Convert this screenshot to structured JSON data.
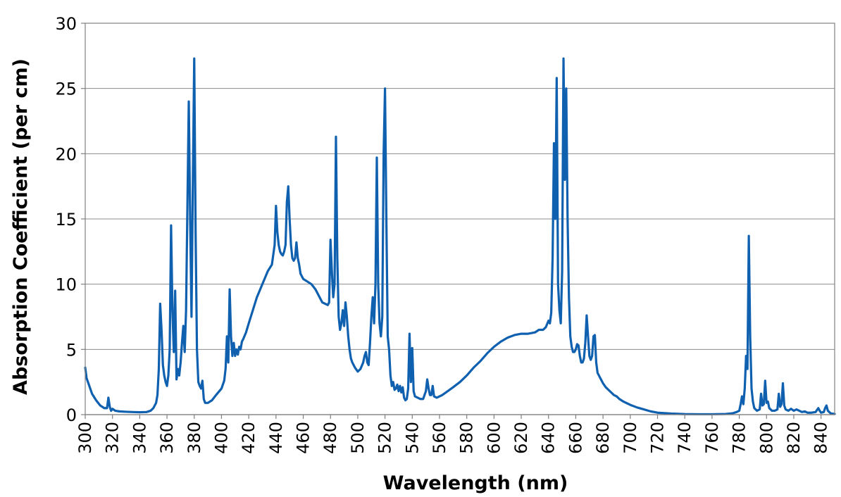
{
  "chart_data": {
    "type": "line",
    "title": "",
    "xlabel": "Wavelength (nm)",
    "ylabel": "Absorption Coefficient (per cm)",
    "xlim": [
      300,
      850
    ],
    "ylim": [
      0,
      30
    ],
    "x_ticks": [
      300,
      320,
      340,
      360,
      380,
      400,
      420,
      440,
      460,
      480,
      500,
      520,
      540,
      560,
      580,
      600,
      620,
      640,
      660,
      680,
      700,
      720,
      740,
      760,
      780,
      800,
      820,
      840
    ],
    "y_ticks": [
      0,
      5,
      10,
      15,
      20,
      25,
      30
    ],
    "grid": "horizontal",
    "legend": "none",
    "series": [
      {
        "color": "#1060b0",
        "points": [
          [
            300,
            3.6
          ],
          [
            301,
            2.8
          ],
          [
            303,
            2.2
          ],
          [
            305,
            1.6
          ],
          [
            308,
            1.1
          ],
          [
            311,
            0.7
          ],
          [
            314,
            0.5
          ],
          [
            316,
            0.5
          ],
          [
            317,
            1.3
          ],
          [
            318,
            0.6
          ],
          [
            319,
            0.3
          ],
          [
            320,
            0.45
          ],
          [
            322,
            0.3
          ],
          [
            325,
            0.25
          ],
          [
            330,
            0.22
          ],
          [
            335,
            0.2
          ],
          [
            340,
            0.18
          ],
          [
            345,
            0.2
          ],
          [
            348,
            0.3
          ],
          [
            350,
            0.5
          ],
          [
            352,
            0.9
          ],
          [
            353,
            1.5
          ],
          [
            354,
            3.5
          ],
          [
            355,
            8.5
          ],
          [
            356,
            6.5
          ],
          [
            357,
            3.8
          ],
          [
            358,
            3.0
          ],
          [
            359,
            2.5
          ],
          [
            360,
            2.2
          ],
          [
            361,
            3.0
          ],
          [
            362,
            5.0
          ],
          [
            363,
            14.5
          ],
          [
            364,
            8.0
          ],
          [
            365,
            4.8
          ],
          [
            366,
            9.5
          ],
          [
            367,
            2.7
          ],
          [
            368,
            3.5
          ],
          [
            369,
            3.0
          ],
          [
            370,
            4.0
          ],
          [
            371,
            5.5
          ],
          [
            372,
            6.8
          ],
          [
            373,
            4.8
          ],
          [
            374,
            8.0
          ],
          [
            375,
            16.0
          ],
          [
            376,
            24.0
          ],
          [
            377,
            15.0
          ],
          [
            378,
            7.5
          ],
          [
            379,
            18.0
          ],
          [
            380,
            27.3
          ],
          [
            381,
            14.0
          ],
          [
            382,
            5.0
          ],
          [
            383,
            2.5
          ],
          [
            384,
            2.2
          ],
          [
            385,
            2.0
          ],
          [
            386,
            2.6
          ],
          [
            387,
            1.2
          ],
          [
            388,
            0.9
          ],
          [
            390,
            0.9
          ],
          [
            393,
            1.1
          ],
          [
            396,
            1.5
          ],
          [
            400,
            2.0
          ],
          [
            402,
            2.6
          ],
          [
            403,
            3.5
          ],
          [
            404,
            6.0
          ],
          [
            405,
            4.0
          ],
          [
            406,
            9.6
          ],
          [
            407,
            6.0
          ],
          [
            408,
            4.5
          ],
          [
            409,
            5.5
          ],
          [
            410,
            4.5
          ],
          [
            411,
            5.0
          ],
          [
            412,
            4.6
          ],
          [
            413,
            5.2
          ],
          [
            414,
            5.0
          ],
          [
            415,
            5.6
          ],
          [
            416,
            5.8
          ],
          [
            418,
            6.3
          ],
          [
            420,
            7.0
          ],
          [
            423,
            8.0
          ],
          [
            426,
            9.0
          ],
          [
            430,
            10.0
          ],
          [
            434,
            11.0
          ],
          [
            437,
            11.5
          ],
          [
            439,
            13.0
          ],
          [
            440,
            16.0
          ],
          [
            441,
            14.0
          ],
          [
            442,
            13.0
          ],
          [
            443,
            12.5
          ],
          [
            444,
            12.3
          ],
          [
            445,
            12.2
          ],
          [
            446,
            12.5
          ],
          [
            447,
            13.0
          ],
          [
            448,
            16.3
          ],
          [
            449,
            17.5
          ],
          [
            450,
            15.0
          ],
          [
            451,
            13.0
          ],
          [
            452,
            12.0
          ],
          [
            453,
            11.8
          ],
          [
            454,
            12.0
          ],
          [
            455,
            13.2
          ],
          [
            456,
            12.0
          ],
          [
            457,
            11.5
          ],
          [
            458,
            10.8
          ],
          [
            460,
            10.4
          ],
          [
            463,
            10.2
          ],
          [
            466,
            10.0
          ],
          [
            469,
            9.6
          ],
          [
            472,
            9.0
          ],
          [
            474,
            8.6
          ],
          [
            476,
            8.5
          ],
          [
            478,
            8.4
          ],
          [
            479,
            8.6
          ],
          [
            480,
            13.4
          ],
          [
            481,
            11.0
          ],
          [
            482,
            9.0
          ],
          [
            483,
            10.0
          ],
          [
            484,
            21.3
          ],
          [
            485,
            12.0
          ],
          [
            486,
            7.5
          ],
          [
            487,
            6.5
          ],
          [
            488,
            7.0
          ],
          [
            489,
            8.0
          ],
          [
            490,
            6.8
          ],
          [
            491,
            8.6
          ],
          [
            492,
            7.5
          ],
          [
            493,
            6.0
          ],
          [
            494,
            5.0
          ],
          [
            495,
            4.3
          ],
          [
            496,
            4.0
          ],
          [
            497,
            3.8
          ],
          [
            498,
            3.6
          ],
          [
            500,
            3.3
          ],
          [
            502,
            3.5
          ],
          [
            504,
            4.0
          ],
          [
            505,
            4.5
          ],
          [
            506,
            4.8
          ],
          [
            507,
            4.0
          ],
          [
            508,
            3.8
          ],
          [
            509,
            5.5
          ],
          [
            510,
            7.5
          ],
          [
            511,
            9.0
          ],
          [
            512,
            7.0
          ],
          [
            513,
            10.0
          ],
          [
            514,
            19.7
          ],
          [
            515,
            10.0
          ],
          [
            516,
            7.0
          ],
          [
            517,
            6.0
          ],
          [
            518,
            7.5
          ],
          [
            519,
            20.0
          ],
          [
            520,
            25.0
          ],
          [
            521,
            15.0
          ],
          [
            522,
            6.0
          ],
          [
            523,
            5.0
          ],
          [
            524,
            3.0
          ],
          [
            525,
            2.2
          ],
          [
            526,
            2.5
          ],
          [
            527,
            1.9
          ],
          [
            528,
            2.0
          ],
          [
            529,
            2.3
          ],
          [
            530,
            1.8
          ],
          [
            531,
            2.2
          ],
          [
            532,
            1.7
          ],
          [
            533,
            2.1
          ],
          [
            534,
            1.3
          ],
          [
            535,
            1.1
          ],
          [
            536,
            1.2
          ],
          [
            537,
            2.0
          ],
          [
            538,
            6.2
          ],
          [
            539,
            2.5
          ],
          [
            540,
            5.1
          ],
          [
            541,
            1.8
          ],
          [
            542,
            1.4
          ],
          [
            544,
            1.3
          ],
          [
            546,
            1.2
          ],
          [
            548,
            1.2
          ],
          [
            550,
            1.8
          ],
          [
            551,
            2.7
          ],
          [
            552,
            2.0
          ],
          [
            553,
            1.5
          ],
          [
            554,
            1.5
          ],
          [
            555,
            2.2
          ],
          [
            556,
            1.4
          ],
          [
            558,
            1.3
          ],
          [
            562,
            1.5
          ],
          [
            566,
            1.8
          ],
          [
            570,
            2.1
          ],
          [
            575,
            2.5
          ],
          [
            580,
            3.0
          ],
          [
            585,
            3.6
          ],
          [
            590,
            4.1
          ],
          [
            595,
            4.7
          ],
          [
            600,
            5.2
          ],
          [
            605,
            5.6
          ],
          [
            610,
            5.9
          ],
          [
            615,
            6.1
          ],
          [
            620,
            6.2
          ],
          [
            625,
            6.2
          ],
          [
            630,
            6.3
          ],
          [
            633,
            6.5
          ],
          [
            636,
            6.5
          ],
          [
            638,
            6.7
          ],
          [
            640,
            7.2
          ],
          [
            641,
            7.0
          ],
          [
            642,
            7.8
          ],
          [
            643,
            12.0
          ],
          [
            644,
            20.8
          ],
          [
            645,
            15.0
          ],
          [
            646,
            25.8
          ],
          [
            647,
            10.0
          ],
          [
            648,
            8.0
          ],
          [
            649,
            7.0
          ],
          [
            650,
            11.0
          ],
          [
            651,
            27.3
          ],
          [
            652,
            18.0
          ],
          [
            653,
            25.0
          ],
          [
            654,
            15.0
          ],
          [
            655,
            9.0
          ],
          [
            656,
            6.0
          ],
          [
            657,
            5.2
          ],
          [
            658,
            4.8
          ],
          [
            659,
            4.8
          ],
          [
            660,
            5.0
          ],
          [
            661,
            5.4
          ],
          [
            662,
            5.3
          ],
          [
            663,
            4.5
          ],
          [
            664,
            4.0
          ],
          [
            665,
            4.0
          ],
          [
            666,
            4.3
          ],
          [
            667,
            5.5
          ],
          [
            668,
            7.6
          ],
          [
            669,
            6.0
          ],
          [
            670,
            4.5
          ],
          [
            671,
            4.2
          ],
          [
            672,
            4.5
          ],
          [
            673,
            6.0
          ],
          [
            674,
            6.1
          ],
          [
            675,
            4.0
          ],
          [
            676,
            3.2
          ],
          [
            678,
            2.8
          ],
          [
            680,
            2.4
          ],
          [
            682,
            2.1
          ],
          [
            685,
            1.8
          ],
          [
            688,
            1.5
          ],
          [
            690,
            1.4
          ],
          [
            692,
            1.2
          ],
          [
            695,
            1.0
          ],
          [
            700,
            0.75
          ],
          [
            705,
            0.55
          ],
          [
            710,
            0.4
          ],
          [
            715,
            0.25
          ],
          [
            720,
            0.15
          ],
          [
            730,
            0.08
          ],
          [
            740,
            0.04
          ],
          [
            750,
            0.03
          ],
          [
            760,
            0.03
          ],
          [
            770,
            0.05
          ],
          [
            775,
            0.1
          ],
          [
            778,
            0.2
          ],
          [
            780,
            0.3
          ],
          [
            781,
            0.8
          ],
          [
            782,
            1.4
          ],
          [
            783,
            0.8
          ],
          [
            784,
            2.0
          ],
          [
            785,
            4.5
          ],
          [
            786,
            3.5
          ],
          [
            787,
            13.7
          ],
          [
            788,
            6.0
          ],
          [
            789,
            2.0
          ],
          [
            790,
            1.0
          ],
          [
            791,
            0.5
          ],
          [
            793,
            0.3
          ],
          [
            795,
            0.4
          ],
          [
            796,
            1.6
          ],
          [
            797,
            0.7
          ],
          [
            798,
            0.8
          ],
          [
            799,
            2.6
          ],
          [
            800,
            0.9
          ],
          [
            801,
            1.0
          ],
          [
            802,
            0.5
          ],
          [
            804,
            0.3
          ],
          [
            806,
            0.3
          ],
          [
            808,
            0.4
          ],
          [
            809,
            1.6
          ],
          [
            810,
            0.6
          ],
          [
            811,
            0.8
          ],
          [
            812,
            2.4
          ],
          [
            813,
            0.7
          ],
          [
            814,
            0.4
          ],
          [
            816,
            0.3
          ],
          [
            818,
            0.45
          ],
          [
            820,
            0.3
          ],
          [
            822,
            0.4
          ],
          [
            824,
            0.3
          ],
          [
            826,
            0.2
          ],
          [
            828,
            0.25
          ],
          [
            830,
            0.15
          ],
          [
            833,
            0.15
          ],
          [
            836,
            0.2
          ],
          [
            838,
            0.5
          ],
          [
            839,
            0.3
          ],
          [
            840,
            0.15
          ],
          [
            842,
            0.2
          ],
          [
            843,
            0.5
          ],
          [
            844,
            0.7
          ],
          [
            845,
            0.3
          ],
          [
            847,
            0.1
          ],
          [
            850,
            0.05
          ]
        ]
      }
    ]
  }
}
